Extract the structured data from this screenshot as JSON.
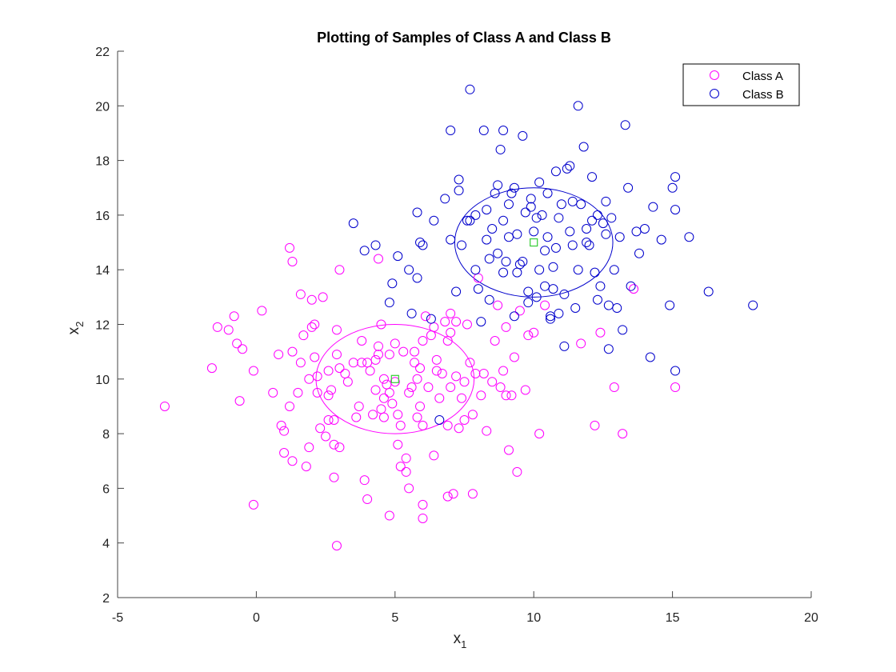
{
  "chart_data": {
    "type": "scatter",
    "title": "Plotting of Samples of Class A and Class B",
    "xlabel": "x",
    "xlabel_sub": "1",
    "ylabel": "x",
    "ylabel_sub": "2",
    "xlim": [
      -5,
      20
    ],
    "ylim": [
      2,
      22
    ],
    "xticks": [
      -5,
      0,
      5,
      10,
      15,
      20
    ],
    "yticks": [
      2,
      4,
      6,
      8,
      10,
      12,
      14,
      16,
      18,
      20,
      22
    ],
    "grid": false,
    "legend_position": "top-right",
    "series": [
      {
        "name": "Class A",
        "color": "#ff00ff",
        "marker": "circle-open",
        "points": [
          [
            -3.3,
            9.0
          ],
          [
            -1.6,
            10.4
          ],
          [
            -1.4,
            11.9
          ],
          [
            -1.0,
            11.8
          ],
          [
            -0.8,
            12.3
          ],
          [
            -0.7,
            11.3
          ],
          [
            -0.5,
            11.1
          ],
          [
            -0.6,
            9.2
          ],
          [
            0.2,
            12.5
          ],
          [
            -0.1,
            10.3
          ],
          [
            -0.1,
            5.4
          ],
          [
            0.6,
            9.5
          ],
          [
            0.8,
            10.9
          ],
          [
            0.9,
            8.3
          ],
          [
            1.0,
            7.3
          ],
          [
            1.0,
            8.1
          ],
          [
            1.2,
            14.8
          ],
          [
            1.3,
            14.3
          ],
          [
            1.3,
            11.0
          ],
          [
            1.2,
            9.0
          ],
          [
            1.3,
            7.0
          ],
          [
            1.5,
            9.5
          ],
          [
            1.6,
            10.6
          ],
          [
            1.7,
            11.6
          ],
          [
            1.6,
            13.1
          ],
          [
            1.8,
            6.8
          ],
          [
            1.9,
            7.5
          ],
          [
            1.9,
            10.0
          ],
          [
            2.0,
            12.9
          ],
          [
            2.0,
            11.9
          ],
          [
            2.1,
            12.0
          ],
          [
            2.1,
            10.8
          ],
          [
            2.2,
            10.1
          ],
          [
            2.2,
            9.5
          ],
          [
            2.3,
            8.2
          ],
          [
            2.4,
            13.0
          ],
          [
            2.5,
            7.9
          ],
          [
            2.6,
            8.5
          ],
          [
            2.6,
            9.4
          ],
          [
            2.6,
            10.3
          ],
          [
            2.7,
            9.6
          ],
          [
            2.8,
            8.5
          ],
          [
            2.8,
            6.4
          ],
          [
            2.8,
            7.6
          ],
          [
            2.9,
            11.8
          ],
          [
            2.9,
            10.9
          ],
          [
            3.0,
            10.4
          ],
          [
            3.0,
            7.5
          ],
          [
            3.0,
            14.0
          ],
          [
            2.9,
            3.9
          ],
          [
            3.2,
            10.2
          ],
          [
            3.3,
            9.9
          ],
          [
            3.5,
            10.6
          ],
          [
            3.6,
            8.6
          ],
          [
            3.7,
            9.0
          ],
          [
            3.8,
            10.6
          ],
          [
            3.8,
            11.4
          ],
          [
            3.9,
            6.3
          ],
          [
            4.0,
            5.6
          ],
          [
            4.0,
            10.6
          ],
          [
            4.1,
            10.3
          ],
          [
            4.2,
            8.7
          ],
          [
            4.3,
            10.7
          ],
          [
            4.3,
            9.6
          ],
          [
            4.4,
            10.9
          ],
          [
            4.4,
            11.2
          ],
          [
            4.5,
            12.0
          ],
          [
            4.5,
            8.9
          ],
          [
            4.6,
            9.3
          ],
          [
            4.6,
            8.6
          ],
          [
            4.6,
            10.0
          ],
          [
            4.7,
            9.8
          ],
          [
            4.8,
            10.9
          ],
          [
            4.8,
            9.5
          ],
          [
            4.9,
            9.1
          ],
          [
            5.0,
            11.3
          ],
          [
            5.0,
            9.9
          ],
          [
            5.1,
            8.7
          ],
          [
            5.1,
            7.6
          ],
          [
            5.2,
            8.3
          ],
          [
            5.3,
            11.0
          ],
          [
            5.4,
            7.1
          ],
          [
            5.4,
            6.6
          ],
          [
            5.5,
            6.0
          ],
          [
            5.5,
            9.5
          ],
          [
            5.6,
            9.7
          ],
          [
            5.7,
            10.6
          ],
          [
            5.7,
            11.0
          ],
          [
            5.8,
            10.0
          ],
          [
            5.8,
            8.6
          ],
          [
            5.9,
            10.4
          ],
          [
            5.9,
            9.0
          ],
          [
            6.0,
            11.4
          ],
          [
            6.0,
            8.3
          ],
          [
            6.0,
            5.4
          ],
          [
            6.0,
            4.9
          ],
          [
            6.1,
            12.3
          ],
          [
            6.2,
            9.7
          ],
          [
            6.3,
            11.6
          ],
          [
            6.4,
            11.9
          ],
          [
            6.4,
            7.2
          ],
          [
            6.5,
            10.7
          ],
          [
            6.5,
            10.3
          ],
          [
            6.6,
            9.3
          ],
          [
            6.7,
            10.2
          ],
          [
            6.8,
            12.1
          ],
          [
            6.9,
            11.4
          ],
          [
            6.9,
            8.3
          ],
          [
            7.0,
            11.7
          ],
          [
            7.0,
            9.7
          ],
          [
            7.0,
            12.4
          ],
          [
            7.1,
            5.8
          ],
          [
            7.2,
            10.1
          ],
          [
            7.2,
            12.1
          ],
          [
            7.3,
            8.2
          ],
          [
            7.4,
            9.3
          ],
          [
            7.5,
            9.9
          ],
          [
            7.5,
            8.5
          ],
          [
            7.6,
            12.0
          ],
          [
            7.7,
            10.6
          ],
          [
            7.8,
            8.7
          ],
          [
            7.8,
            5.8
          ],
          [
            7.9,
            10.2
          ],
          [
            8.0,
            13.7
          ],
          [
            8.1,
            9.4
          ],
          [
            8.2,
            10.2
          ],
          [
            8.3,
            8.1
          ],
          [
            8.5,
            9.9
          ],
          [
            8.6,
            11.4
          ],
          [
            8.7,
            12.7
          ],
          [
            8.8,
            9.7
          ],
          [
            8.9,
            10.3
          ],
          [
            9.0,
            11.9
          ],
          [
            9.0,
            9.4
          ],
          [
            9.1,
            7.4
          ],
          [
            9.2,
            9.4
          ],
          [
            9.3,
            10.8
          ],
          [
            9.4,
            6.6
          ],
          [
            9.5,
            12.5
          ],
          [
            9.7,
            9.6
          ],
          [
            9.8,
            11.6
          ],
          [
            10.0,
            11.7
          ],
          [
            10.2,
            8.0
          ],
          [
            10.4,
            12.7
          ],
          [
            11.7,
            11.3
          ],
          [
            12.2,
            8.3
          ],
          [
            12.4,
            11.7
          ],
          [
            12.9,
            9.7
          ],
          [
            13.2,
            8.0
          ],
          [
            13.6,
            13.3
          ],
          [
            15.1,
            9.7
          ],
          [
            4.4,
            14.4
          ],
          [
            5.2,
            6.8
          ],
          [
            4.8,
            5.0
          ],
          [
            6.9,
            5.7
          ]
        ]
      },
      {
        "name": "Class B",
        "color": "#0000cc",
        "marker": "circle-open",
        "points": [
          [
            3.5,
            15.7
          ],
          [
            3.9,
            14.7
          ],
          [
            4.3,
            14.9
          ],
          [
            4.9,
            13.5
          ],
          [
            4.8,
            12.8
          ],
          [
            5.1,
            14.5
          ],
          [
            5.5,
            14.0
          ],
          [
            5.6,
            12.4
          ],
          [
            5.8,
            13.7
          ],
          [
            5.8,
            16.1
          ],
          [
            5.9,
            15.0
          ],
          [
            6.0,
            14.9
          ],
          [
            6.3,
            12.2
          ],
          [
            6.4,
            15.8
          ],
          [
            6.6,
            8.5
          ],
          [
            6.8,
            16.6
          ],
          [
            7.0,
            19.1
          ],
          [
            7.0,
            15.1
          ],
          [
            7.2,
            13.2
          ],
          [
            7.3,
            17.3
          ],
          [
            7.3,
            16.9
          ],
          [
            7.4,
            14.9
          ],
          [
            7.7,
            20.6
          ],
          [
            7.7,
            15.8
          ],
          [
            7.9,
            16.0
          ],
          [
            8.0,
            13.3
          ],
          [
            8.1,
            12.1
          ],
          [
            8.2,
            19.1
          ],
          [
            8.3,
            15.1
          ],
          [
            8.4,
            14.4
          ],
          [
            8.5,
            15.5
          ],
          [
            8.6,
            16.8
          ],
          [
            8.7,
            17.1
          ],
          [
            8.8,
            18.4
          ],
          [
            8.9,
            19.1
          ],
          [
            8.9,
            15.8
          ],
          [
            9.0,
            14.3
          ],
          [
            9.1,
            16.4
          ],
          [
            9.2,
            16.8
          ],
          [
            9.3,
            17.0
          ],
          [
            9.4,
            15.3
          ],
          [
            9.5,
            14.2
          ],
          [
            9.6,
            18.9
          ],
          [
            9.7,
            16.1
          ],
          [
            9.8,
            13.2
          ],
          [
            9.9,
            16.6
          ],
          [
            10.0,
            15.4
          ],
          [
            10.1,
            13.0
          ],
          [
            10.2,
            17.2
          ],
          [
            10.3,
            16.0
          ],
          [
            10.4,
            14.7
          ],
          [
            10.5,
            15.2
          ],
          [
            10.6,
            12.3
          ],
          [
            10.7,
            14.1
          ],
          [
            10.8,
            17.6
          ],
          [
            10.9,
            15.9
          ],
          [
            11.0,
            16.4
          ],
          [
            11.1,
            13.1
          ],
          [
            11.2,
            17.7
          ],
          [
            11.3,
            17.8
          ],
          [
            11.4,
            14.9
          ],
          [
            11.5,
            12.6
          ],
          [
            11.6,
            20.0
          ],
          [
            11.7,
            16.4
          ],
          [
            11.8,
            18.5
          ],
          [
            11.9,
            15.5
          ],
          [
            12.0,
            14.9
          ],
          [
            12.1,
            17.4
          ],
          [
            12.2,
            13.9
          ],
          [
            12.3,
            16.0
          ],
          [
            12.4,
            13.4
          ],
          [
            12.5,
            15.7
          ],
          [
            12.6,
            16.5
          ],
          [
            12.7,
            12.7
          ],
          [
            12.8,
            15.9
          ],
          [
            12.9,
            14.0
          ],
          [
            13.0,
            12.6
          ],
          [
            13.1,
            15.2
          ],
          [
            13.2,
            11.8
          ],
          [
            13.3,
            19.3
          ],
          [
            13.4,
            17.0
          ],
          [
            13.5,
            13.4
          ],
          [
            13.7,
            15.4
          ],
          [
            13.8,
            14.6
          ],
          [
            14.0,
            15.5
          ],
          [
            14.2,
            10.8
          ],
          [
            14.3,
            16.3
          ],
          [
            14.6,
            15.1
          ],
          [
            14.9,
            12.7
          ],
          [
            15.0,
            17.0
          ],
          [
            15.1,
            17.4
          ],
          [
            15.1,
            10.3
          ],
          [
            15.1,
            16.2
          ],
          [
            15.6,
            15.2
          ],
          [
            16.3,
            13.2
          ],
          [
            17.9,
            12.7
          ],
          [
            11.1,
            11.2
          ],
          [
            12.7,
            11.1
          ],
          [
            10.9,
            12.4
          ],
          [
            9.4,
            13.9
          ],
          [
            10.7,
            13.3
          ],
          [
            8.9,
            13.9
          ],
          [
            9.3,
            12.3
          ],
          [
            11.6,
            14.0
          ],
          [
            12.6,
            15.3
          ],
          [
            10.1,
            15.9
          ],
          [
            9.9,
            16.3
          ],
          [
            10.5,
            16.8
          ],
          [
            11.4,
            16.5
          ],
          [
            8.3,
            16.2
          ],
          [
            7.6,
            15.8
          ],
          [
            9.6,
            14.3
          ],
          [
            10.2,
            14.0
          ],
          [
            11.9,
            15.0
          ],
          [
            12.1,
            15.8
          ],
          [
            9.1,
            15.2
          ],
          [
            8.7,
            14.6
          ],
          [
            10.8,
            14.8
          ],
          [
            10.4,
            13.4
          ],
          [
            11.3,
            15.4
          ],
          [
            9.8,
            12.8
          ],
          [
            10.6,
            12.2
          ],
          [
            8.4,
            12.9
          ],
          [
            7.9,
            14.0
          ],
          [
            12.3,
            12.9
          ]
        ]
      }
    ],
    "centers": [
      {
        "series": "Class A",
        "x": 5,
        "y": 10,
        "color": "#33cc33",
        "marker": "square-open"
      },
      {
        "series": "Class B",
        "x": 10,
        "y": 15,
        "color": "#33cc33",
        "marker": "square-open"
      }
    ],
    "contours": [
      {
        "series": "Class A",
        "cx": 5,
        "cy": 10,
        "rx": 5.7,
        "ry": 2.0,
        "color": "#ff00ff"
      },
      {
        "series": "Class B",
        "cx": 10,
        "cy": 15,
        "rx": 5.7,
        "ry": 2.0,
        "color": "#0000cc"
      }
    ]
  }
}
